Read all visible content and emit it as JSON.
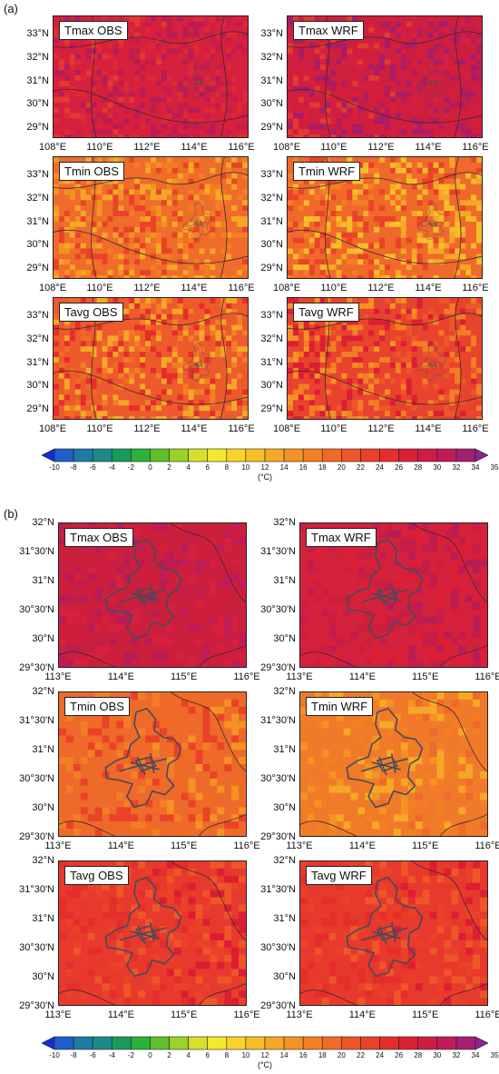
{
  "panel_a": {
    "label": "(a)",
    "xticks": [
      "108°E",
      "110°E",
      "112°E",
      "114°E",
      "116°E"
    ],
    "yticks": [
      "33°N",
      "32°N",
      "31°N",
      "30°N",
      "29°N"
    ],
    "maps": [
      {
        "label": "Tmax OBS",
        "base": "#d6203d",
        "variant": "tmax_obs"
      },
      {
        "label": "Tmax WRF",
        "base": "#d01e3e",
        "variant": "tmax_wrf"
      },
      {
        "label": "Tmin OBS",
        "base": "#ef6c2a",
        "variant": "tmin_obs"
      },
      {
        "label": "Tmin WRF",
        "base": "#f0692a",
        "variant": "tmin_wrf"
      },
      {
        "label": "Tavg OBS",
        "base": "#ed5a2c",
        "variant": "tavg_obs"
      },
      {
        "label": "Tavg WRF",
        "base": "#e8432d",
        "variant": "tavg_wrf"
      }
    ]
  },
  "panel_b": {
    "label": "(b)",
    "xticks": [
      "113°E",
      "114°E",
      "115°E",
      "116°E"
    ],
    "yticks": [
      "32°N",
      "31°30'N",
      "31°N",
      "30°30'N",
      "30°N",
      "29°30'N"
    ],
    "maps": [
      {
        "label": "Tmax OBS",
        "base": "#cc1f3d",
        "variant": "b_tmax_obs"
      },
      {
        "label": "Tmax WRF",
        "base": "#d4213c",
        "variant": "b_tmax_wrf"
      },
      {
        "label": "Tmin OBS",
        "base": "#ee6a2b",
        "variant": "b_tmin_obs"
      },
      {
        "label": "Tmin WRF",
        "base": "#f07a2a",
        "variant": "b_tmin_wrf"
      },
      {
        "label": "Tavg OBS",
        "base": "#e8392d",
        "variant": "b_tavg_obs"
      },
      {
        "label": "Tavg WRF",
        "base": "#e8392d",
        "variant": "b_tavg_wrf"
      }
    ]
  },
  "colorbar": {
    "ticks": [
      "-10",
      "-8",
      "-6",
      "-4",
      "-2",
      "0",
      "2",
      "4",
      "6",
      "8",
      "10",
      "12",
      "14",
      "16",
      "18",
      "20",
      "22",
      "24",
      "26",
      "28",
      "30",
      "32",
      "34",
      "35"
    ],
    "unit": "(°C)",
    "colors": [
      "#1a2ad8",
      "#1f5fc8",
      "#1f7aa6",
      "#1d8a86",
      "#1a9a5a",
      "#2bb23a",
      "#5ec02c",
      "#9ad22a",
      "#d6e02a",
      "#f4e82c",
      "#f8d42a",
      "#f7be28",
      "#f5a826",
      "#f59224",
      "#f37e24",
      "#f16a26",
      "#ee5628",
      "#ea4229",
      "#e52e2c",
      "#dc1e34",
      "#cf1c44",
      "#bf1c58",
      "#a41f72",
      "#8a2590"
    ]
  }
}
